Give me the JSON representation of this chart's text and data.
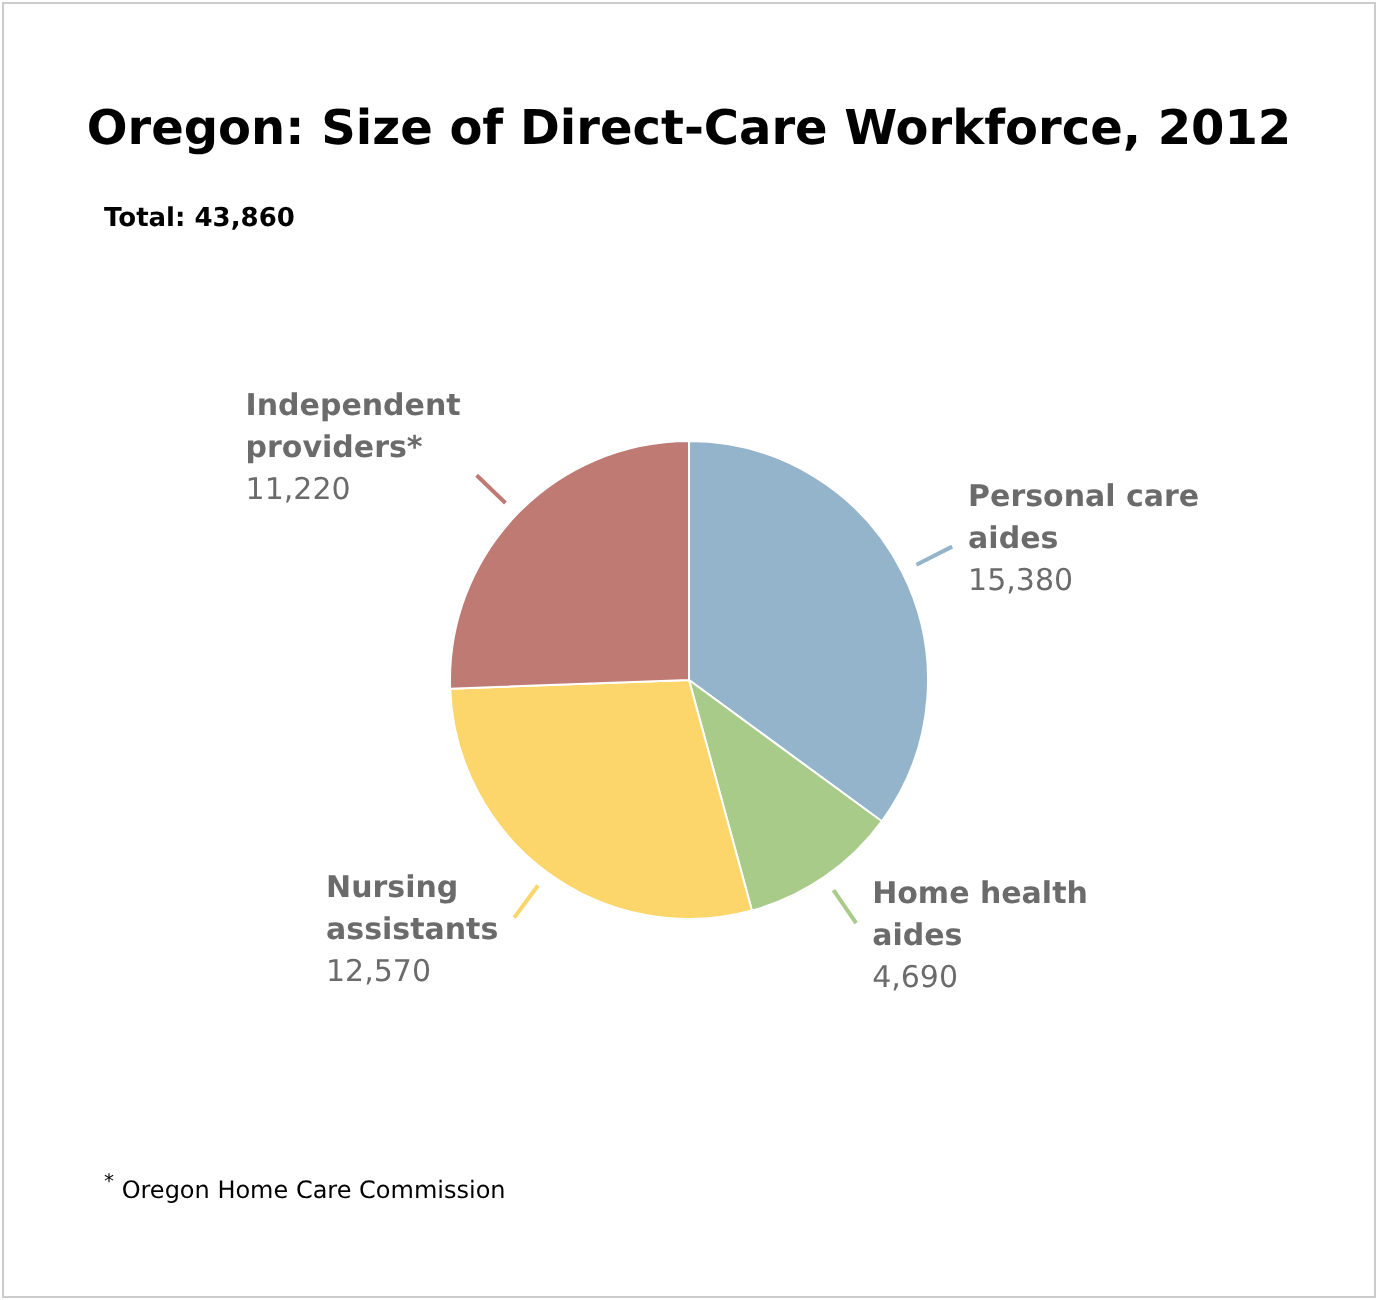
{
  "chart_data": {
    "type": "pie",
    "title": "Oregon: Size of Direct-Care Workforce, 2012",
    "subtitle": "Total: 43,860",
    "categories": [
      "Personal care aides",
      "Home health aides",
      "Nursing assistants",
      "Independent providers*"
    ],
    "values": [
      15380,
      4690,
      12570,
      11220
    ],
    "value_labels": [
      "15,380",
      "4,690",
      "12,570",
      "11,220"
    ],
    "colors": [
      "#94b4cb",
      "#a9cb8a",
      "#fcd56b",
      "#c07a74"
    ],
    "legend": false,
    "annotations": [
      "$^{*}$ Oregon Home Care Commission"
    ]
  }
}
